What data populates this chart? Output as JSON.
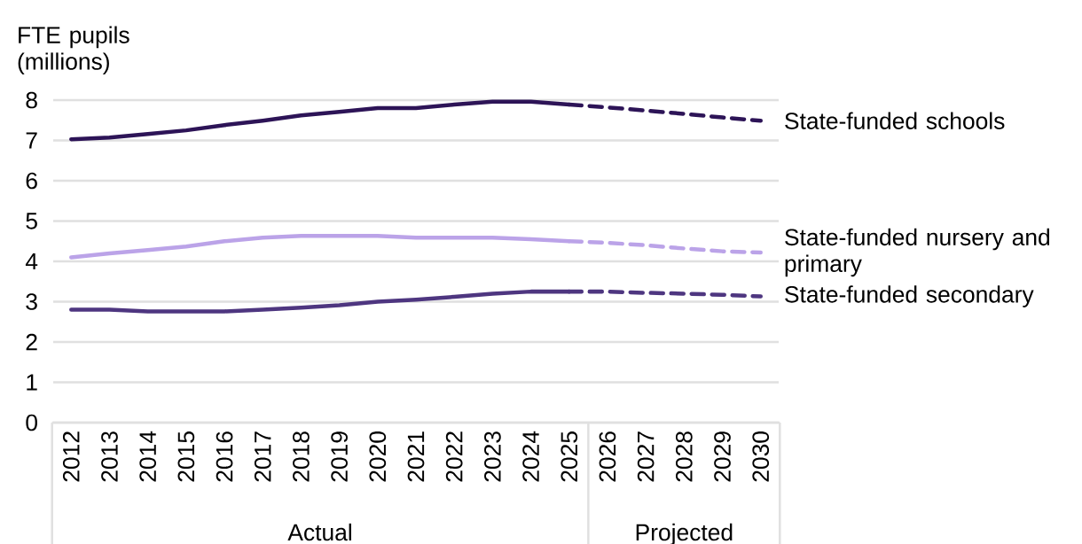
{
  "chart_data": {
    "type": "line",
    "ylabel": "FTE pupils (millions)",
    "categories": [
      "2012",
      "2013",
      "2014",
      "2015",
      "2016",
      "2017",
      "2018",
      "2019",
      "2020",
      "2021",
      "2022",
      "2023",
      "2024",
      "2025",
      "2026",
      "2027",
      "2028",
      "2029",
      "2030"
    ],
    "ylim": [
      0,
      8
    ],
    "yticks": [
      0,
      1,
      2,
      3,
      4,
      5,
      6,
      7,
      8
    ],
    "grid": "y",
    "series": [
      {
        "name": "State-funded schools",
        "color": "#2d1457",
        "line_style": "solid",
        "values": [
          7.03,
          7.07,
          7.16,
          7.25,
          7.38,
          7.49,
          7.62,
          7.71,
          7.8,
          7.8,
          7.89,
          7.96,
          7.96,
          7.89,
          null,
          null,
          null,
          null,
          null
        ]
      },
      {
        "color": "#2d1457",
        "line_style": "dashed",
        "values": [
          null,
          null,
          null,
          null,
          null,
          null,
          null,
          null,
          null,
          null,
          null,
          null,
          null,
          7.89,
          7.82,
          7.74,
          7.66,
          7.57,
          7.49
        ]
      },
      {
        "name": "State-funded nursery and primary",
        "color": "#bba3e8",
        "line_style": "solid",
        "values": [
          4.1,
          4.2,
          4.28,
          4.37,
          4.5,
          4.59,
          4.63,
          4.63,
          4.63,
          4.59,
          4.59,
          4.59,
          4.55,
          4.5,
          null,
          null,
          null,
          null,
          null
        ]
      },
      {
        "color": "#bba3e8",
        "line_style": "dashed",
        "values": [
          null,
          null,
          null,
          null,
          null,
          null,
          null,
          null,
          null,
          null,
          null,
          null,
          null,
          4.5,
          4.46,
          4.4,
          4.32,
          4.25,
          4.22
        ]
      },
      {
        "name": "State-funded secondary",
        "color": "#4e3680",
        "line_style": "solid",
        "values": [
          2.8,
          2.8,
          2.76,
          2.76,
          2.76,
          2.8,
          2.85,
          2.91,
          3.0,
          3.05,
          3.12,
          3.2,
          3.25,
          3.25,
          null,
          null,
          null,
          null,
          null
        ]
      },
      {
        "color": "#4e3680",
        "line_style": "dashed",
        "values": [
          null,
          null,
          null,
          null,
          null,
          null,
          null,
          null,
          null,
          null,
          null,
          null,
          null,
          3.25,
          3.25,
          3.22,
          3.2,
          3.17,
          3.13
        ]
      }
    ],
    "annotations": [
      "Actual",
      "Projected"
    ]
  }
}
